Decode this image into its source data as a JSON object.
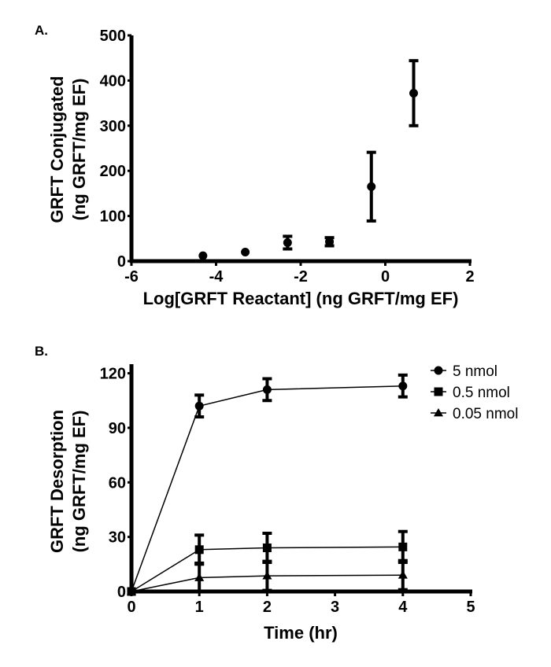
{
  "chart_data": [
    {
      "panel_label": "A.",
      "type": "scatter",
      "title": "",
      "xlabel": "Log[GRFT Reactant] (ng GRFT/mg EF)",
      "ylabel_line1": "GRFT Conjugated",
      "ylabel_line2": "(ng GRFT/mg EF)",
      "xlim": [
        -6,
        2
      ],
      "ylim": [
        0,
        500
      ],
      "xticks": [
        -6,
        -4,
        -2,
        0,
        2
      ],
      "yticks": [
        0,
        100,
        200,
        300,
        400,
        500
      ],
      "grid": false,
      "series": [
        {
          "name": "GRFT Conjugated",
          "marker": "circle",
          "x": [
            -4.31,
            -3.31,
            -2.31,
            -1.32,
            -0.33,
            0.67
          ],
          "y": [
            12,
            20,
            41,
            43,
            165,
            372
          ],
          "error": [
            0,
            0,
            14,
            9,
            76,
            72
          ]
        }
      ]
    },
    {
      "panel_label": "B.",
      "type": "line",
      "title": "",
      "xlabel": "Time (hr)",
      "ylabel_line1": "GRFT Desorption",
      "ylabel_line2": "(ng GRFT/mg EF)",
      "xlim": [
        0,
        5
      ],
      "ylim": [
        0,
        125
      ],
      "xticks": [
        0,
        1,
        2,
        3,
        4,
        5
      ],
      "yticks": [
        0,
        30,
        60,
        90,
        120
      ],
      "grid": false,
      "legend_position": "top-right",
      "series": [
        {
          "name": "5 nmol",
          "marker": "circle",
          "x": [
            0,
            1,
            2,
            4
          ],
          "y": [
            0,
            102,
            111,
            113
          ],
          "error": [
            0,
            6,
            6,
            6
          ]
        },
        {
          "name": "0.5 nmol",
          "marker": "square",
          "x": [
            0,
            1,
            2,
            4
          ],
          "y": [
            0,
            23,
            24,
            24.5
          ],
          "error": [
            0,
            8,
            8,
            8.5
          ]
        },
        {
          "name": "0.05 nmol",
          "marker": "triangle",
          "x": [
            0,
            1,
            2,
            4
          ],
          "y": [
            0,
            7.6,
            8.6,
            9
          ],
          "error": [
            0,
            8,
            8,
            8
          ]
        }
      ]
    }
  ]
}
